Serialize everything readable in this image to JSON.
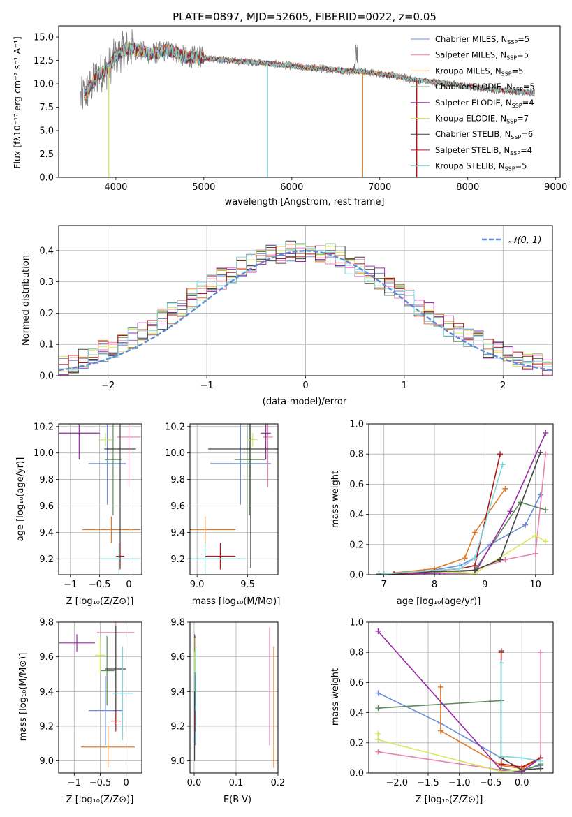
{
  "figure_title": "PLATE=0897, MJD=52605, FIBERID=0022, z=0.05",
  "chart_data": [
    {
      "id": "spectrum",
      "type": "line",
      "title": "PLATE=0897, MJD=52605, FIBERID=0022, z=0.05",
      "xlabel": "wavelength [Angstrom, rest frame]",
      "ylabel": "Flux [fλ10⁻¹⁷ erg cm⁻² s⁻¹ A⁻¹]",
      "xlim": [
        3350,
        9050
      ],
      "ylim": [
        0,
        16.2
      ],
      "xticks": [
        4000,
        5000,
        6000,
        7000,
        8000,
        9000
      ],
      "yticks": [
        0,
        2.5,
        5.0,
        7.5,
        10.0,
        12.5,
        15.0
      ],
      "ytick_labels": [
        "0.0",
        "2.5",
        "5.0",
        "7.5",
        "10.0",
        "12.5",
        "15.0"
      ],
      "grid": false,
      "legend_position": "top-right",
      "data": {
        "wavelength": [
          3600,
          3700,
          3800,
          3900,
          4000,
          4100,
          4200,
          4300,
          4400,
          4500,
          4600,
          4700,
          4800,
          4900,
          5000,
          5200,
          5400,
          5600,
          5800,
          6000,
          6200,
          6400,
          6600,
          6800,
          7000,
          7200,
          7400,
          7600,
          7800,
          8000,
          8200,
          8400,
          8600,
          8750
        ],
        "flux": [
          8.5,
          9.5,
          11.0,
          11.5,
          13.0,
          13.6,
          13.8,
          13.5,
          13.2,
          13.4,
          13.6,
          13.3,
          12.8,
          12.9,
          12.8,
          12.6,
          12.4,
          12.3,
          12.1,
          11.9,
          11.7,
          11.6,
          11.4,
          11.3,
          11.1,
          10.8,
          10.4,
          10.2,
          10.0,
          9.7,
          9.5,
          9.3,
          9.2,
          9.0
        ]
      },
      "series": [
        {
          "name": "Chabrier MILES, N_SSP=5",
          "color": "#6a8fd8"
        },
        {
          "name": "Salpeter MILES, N_SSP=5",
          "color": "#e882b4"
        },
        {
          "name": "Kroupa MILES, N_SSP=5",
          "color": "#e07b28"
        },
        {
          "name": "Chabrier ELODIE, N_SSP=5",
          "color": "#5d8a5d"
        },
        {
          "name": "Salpeter ELODIE, N_SSP=4",
          "color": "#9a2aa8"
        },
        {
          "name": "Kroupa ELODIE, N_SSP=7",
          "color": "#d8e85c"
        },
        {
          "name": "Chabrier STELIB, N_SSP=6",
          "color": "#444444"
        },
        {
          "name": "Salpeter STELIB, N_SSP=4",
          "color": "#b01818"
        },
        {
          "name": "Kroupa STELIB, N_SSP=5",
          "color": "#7fd6dc"
        }
      ]
    },
    {
      "id": "residuals",
      "type": "line",
      "xlabel": "(data-model)/error",
      "ylabel": "Normed distribution",
      "xlim": [
        -2.5,
        2.5
      ],
      "ylim": [
        0,
        0.48
      ],
      "xticks": [
        -2,
        -1,
        0,
        1,
        2
      ],
      "xtick_labels": [
        "−2",
        "−1",
        "0",
        "1",
        "2"
      ],
      "yticks": [
        0.0,
        0.1,
        0.2,
        0.3,
        0.4
      ],
      "ytick_labels": [
        "0.0",
        "0.1",
        "0.2",
        "0.3",
        "0.4"
      ],
      "grid": true,
      "legend_position": "top-right",
      "legend": "𝒩(0, 1)",
      "normal_curve": {
        "mu": 0,
        "sigma": 1,
        "color": "#5b8bd6"
      },
      "histogram_bin_width": 0.1,
      "histogram_counts_approx": [
        0.03,
        0.04,
        0.05,
        0.06,
        0.08,
        0.09,
        0.11,
        0.12,
        0.14,
        0.16,
        0.18,
        0.2,
        0.22,
        0.25,
        0.27,
        0.29,
        0.31,
        0.33,
        0.35,
        0.36,
        0.38,
        0.39,
        0.39,
        0.4,
        0.4,
        0.4,
        0.39,
        0.39,
        0.38,
        0.36,
        0.35,
        0.33,
        0.31,
        0.29,
        0.27,
        0.25,
        0.22,
        0.2,
        0.18,
        0.16,
        0.14,
        0.12,
        0.11,
        0.09,
        0.08,
        0.06,
        0.05,
        0.04,
        0.04,
        0.03
      ]
    },
    {
      "id": "age_vs_Z",
      "type": "scatter",
      "xlabel": "Z [log₁₀(Z/Z⊙)]",
      "ylabel": "age  [log₁₀(age/yr)]",
      "xlim": [
        -1.2,
        0.22
      ],
      "ylim": [
        9.08,
        10.22
      ],
      "xticks": [
        -1,
        -0.5,
        0
      ],
      "xtick_labels": [
        "−1",
        "−0.5",
        "0"
      ],
      "yticks": [
        9.2,
        9.4,
        9.6,
        9.8,
        10.0,
        10.2
      ],
      "ytick_labels": [
        "9.2",
        "9.4",
        "9.6",
        "9.8",
        "10.0",
        "10.2"
      ],
      "grid": true,
      "points": [
        {
          "x": -0.37,
          "y": 9.92,
          "xerr": 0.32,
          "yerr": 0.31,
          "color": "#6a8fd8"
        },
        {
          "x": 0.0,
          "y": 10.12,
          "xerr": 0.2,
          "yerr": 0.38,
          "color": "#e882b4"
        },
        {
          "x": -0.3,
          "y": 9.42,
          "xerr": 0.5,
          "yerr": 0.1,
          "color": "#e07b28"
        },
        {
          "x": -0.27,
          "y": 9.95,
          "xerr": 0.14,
          "yerr": 0.42,
          "color": "#5d8a5d"
        },
        {
          "x": -0.85,
          "y": 10.15,
          "xerr": 0.35,
          "yerr": 0.2,
          "color": "#9a2aa8"
        },
        {
          "x": -0.4,
          "y": 10.1,
          "xerr": 0.12,
          "yerr": 0.05,
          "color": "#d8e85c"
        },
        {
          "x": -0.15,
          "y": 10.03,
          "xerr": 0.27,
          "yerr": 0.9,
          "color": "#444444"
        },
        {
          "x": -0.15,
          "y": 9.22,
          "xerr": 0.07,
          "yerr": 0.1,
          "color": "#b01818"
        },
        {
          "x": -0.17,
          "y": 9.2,
          "xerr": 0.35,
          "yerr": 0.12,
          "color": "#7fd6dc"
        }
      ]
    },
    {
      "id": "age_vs_mass",
      "type": "scatter",
      "xlabel": "mass [log₁₀(M/M⊙)]",
      "ylabel": "",
      "xlim": [
        8.93,
        9.8
      ],
      "ylim": [
        9.08,
        10.22
      ],
      "xticks": [
        9.0,
        9.5
      ],
      "xtick_labels": [
        "9.0",
        "9.5"
      ],
      "yticks": [
        9.2,
        9.4,
        9.6,
        9.8,
        10.0,
        10.2
      ],
      "ytick_labels": [
        "9.2",
        "9.4",
        "9.6",
        "9.8",
        "10.0",
        "10.2"
      ],
      "grid": true,
      "points": [
        {
          "x": 9.43,
          "y": 9.92,
          "xerr": 0.3,
          "yerr": 0.31,
          "color": "#6a8fd8"
        },
        {
          "x": 9.7,
          "y": 10.12,
          "xerr": 0.05,
          "yerr": 0.38,
          "color": "#e882b4"
        },
        {
          "x": 9.08,
          "y": 9.42,
          "xerr": 0.3,
          "yerr": 0.1,
          "color": "#e07b28"
        },
        {
          "x": 9.52,
          "y": 9.95,
          "xerr": 0.15,
          "yerr": 0.42,
          "color": "#5d8a5d"
        },
        {
          "x": 9.68,
          "y": 10.15,
          "xerr": 0.05,
          "yerr": 0.2,
          "color": "#9a2aa8"
        },
        {
          "x": 9.55,
          "y": 10.1,
          "xerr": 0.05,
          "yerr": 0.05,
          "color": "#d8e85c"
        },
        {
          "x": 9.53,
          "y": 10.03,
          "xerr": 0.42,
          "yerr": 0.9,
          "color": "#444444"
        },
        {
          "x": 9.23,
          "y": 9.22,
          "xerr": 0.15,
          "yerr": 0.1,
          "color": "#b01818"
        },
        {
          "x": 9.08,
          "y": 9.2,
          "xerr": 0.4,
          "yerr": 0.12,
          "color": "#7fd6dc"
        }
      ]
    },
    {
      "id": "massweight_vs_age",
      "type": "line",
      "xlabel": "age  [log₁₀(age/yr)]",
      "ylabel": "mass weight",
      "xlim": [
        6.7,
        10.35
      ],
      "ylim": [
        0,
        1.0
      ],
      "xticks": [
        7,
        8,
        9,
        10
      ],
      "xtick_labels": [
        "7",
        "8",
        "9",
        "10"
      ],
      "yticks": [
        0.0,
        0.2,
        0.4,
        0.6,
        0.8,
        1.0
      ],
      "ytick_labels": [
        "0.0",
        "0.2",
        "0.4",
        "0.6",
        "0.8",
        "1.0"
      ],
      "grid": true,
      "series": [
        {
          "color": "#6a8fd8",
          "x": [
            7.0,
            7.8,
            8.5,
            8.8,
            9.1,
            9.8,
            10.1
          ],
          "y": [
            0.005,
            0.02,
            0.06,
            0.11,
            0.2,
            0.33,
            0.53
          ]
        },
        {
          "color": "#e882b4",
          "x": [
            7.2,
            8.2,
            8.8,
            9.4,
            10.0,
            10.2
          ],
          "y": [
            0.005,
            0.01,
            0.03,
            0.1,
            0.14,
            0.8
          ]
        },
        {
          "color": "#e07b28",
          "x": [
            7.0,
            8.0,
            8.6,
            8.8,
            9.4
          ],
          "y": [
            0.005,
            0.04,
            0.11,
            0.28,
            0.57
          ]
        },
        {
          "color": "#5d8a5d",
          "x": [
            6.9,
            8.0,
            8.8,
            9.7,
            10.2
          ],
          "y": [
            0.005,
            0.01,
            0.03,
            0.48,
            0.43
          ]
        },
        {
          "color": "#9a2aa8",
          "x": [
            7.0,
            8.1,
            8.8,
            9.5,
            10.2
          ],
          "y": [
            0.005,
            0.01,
            0.01,
            0.42,
            0.94
          ]
        },
        {
          "color": "#d8e85c",
          "x": [
            7.0,
            8.0,
            8.8,
            10.0,
            10.2
          ],
          "y": [
            0.005,
            0.02,
            0.01,
            0.26,
            0.22
          ]
        },
        {
          "color": "#444444",
          "x": [
            7.0,
            8.0,
            8.8,
            9.3,
            10.1
          ],
          "y": [
            0.005,
            0.02,
            0.03,
            0.1,
            0.81
          ]
        },
        {
          "color": "#b01818",
          "x": [
            7.2,
            8.5,
            8.8,
            9.3
          ],
          "y": [
            0.005,
            0.04,
            0.06,
            0.8
          ]
        },
        {
          "color": "#7fd6dc",
          "x": [
            7.0,
            8.5,
            8.8,
            9.35
          ],
          "y": [
            0.005,
            0.04,
            0.11,
            0.73
          ]
        }
      ]
    },
    {
      "id": "mass_vs_Z",
      "type": "scatter",
      "xlabel": "Z [log₁₀(Z/Z⊙)]",
      "ylabel": "mass [log₁₀(M/M⊙)]",
      "xlim": [
        -1.3,
        0.3
      ],
      "ylim": [
        8.93,
        9.8
      ],
      "xticks": [
        -1,
        -0.5,
        0
      ],
      "xtick_labels": [
        "−1",
        "−0.5",
        "0"
      ],
      "yticks": [
        9.0,
        9.2,
        9.4,
        9.6,
        9.8
      ],
      "ytick_labels": [
        "9.0",
        "9.2",
        "9.4",
        "9.6",
        "9.8"
      ],
      "grid": true,
      "points": [
        {
          "x": -0.4,
          "y": 9.29,
          "xerr": 0.32,
          "yerr": 0.2,
          "color": "#6a8fd8"
        },
        {
          "x": -0.2,
          "y": 9.74,
          "xerr": 0.36,
          "yerr": 0.5,
          "color": "#e882b4"
        },
        {
          "x": -0.35,
          "y": 9.08,
          "xerr": 0.52,
          "yerr": 0.12,
          "color": "#e07b28"
        },
        {
          "x": -0.37,
          "y": 9.52,
          "xerr": 0.14,
          "yerr": 0.2,
          "color": "#5d8a5d"
        },
        {
          "x": -0.95,
          "y": 9.68,
          "xerr": 0.35,
          "yerr": 0.05,
          "color": "#9a2aa8"
        },
        {
          "x": -0.5,
          "y": 9.61,
          "xerr": 0.1,
          "yerr": 0.1,
          "color": "#d8e85c"
        },
        {
          "x": -0.2,
          "y": 9.53,
          "xerr": 0.2,
          "yerr": 0.25,
          "color": "#444444"
        },
        {
          "x": -0.2,
          "y": 9.23,
          "xerr": 0.1,
          "yerr": 0.06,
          "color": "#b01818"
        },
        {
          "x": -0.07,
          "y": 9.39,
          "xerr": 0.2,
          "yerr": 0.27,
          "color": "#7fd6dc"
        }
      ]
    },
    {
      "id": "mass_vs_EBV",
      "type": "scatter",
      "xlabel": "E(B-V)",
      "ylabel": "",
      "xlim": [
        -0.01,
        0.2
      ],
      "ylim": [
        8.93,
        9.8
      ],
      "xticks": [
        0.0,
        0.1,
        0.2
      ],
      "xtick_labels": [
        "0.0",
        "0.1",
        "0.2"
      ],
      "yticks": [
        9.0,
        9.2,
        9.4,
        9.6,
        9.8
      ],
      "ytick_labels": [
        "9.0",
        "9.2",
        "9.4",
        "9.6",
        "9.8"
      ],
      "grid": true,
      "points": [
        {
          "x": 0.003,
          "y": 9.29,
          "xerr": 0.0,
          "yerr": 0.2,
          "color": "#6a8fd8"
        },
        {
          "x": 0.18,
          "y": 9.43,
          "xerr": 0.0,
          "yerr": 0.34,
          "color": "#e882b4"
        },
        {
          "x": 0.19,
          "y": 9.31,
          "xerr": 0.0,
          "yerr": 0.35,
          "color": "#e07b28"
        },
        {
          "x": 0.002,
          "y": 9.52,
          "xerr": 0.0,
          "yerr": 0.2,
          "color": "#5d8a5d"
        },
        {
          "x": 0.001,
          "y": 9.68,
          "xerr": 0.0,
          "yerr": 0.05,
          "color": "#9a2aa8"
        },
        {
          "x": 0.002,
          "y": 9.61,
          "xerr": 0.0,
          "yerr": 0.1,
          "color": "#d8e85c"
        },
        {
          "x": 0.001,
          "y": 9.2,
          "xerr": 0.0,
          "yerr": 0.2,
          "color": "#444444"
        },
        {
          "x": 0.003,
          "y": 9.23,
          "xerr": 0.0,
          "yerr": 0.06,
          "color": "#b01818"
        },
        {
          "x": 0.004,
          "y": 9.39,
          "xerr": 0.0,
          "yerr": 0.27,
          "color": "#7fd6dc"
        }
      ]
    },
    {
      "id": "massweight_vs_Z",
      "type": "line",
      "xlabel": "Z [log₁₀(Z/Z⊙)]",
      "ylabel": "mass weight",
      "xlim": [
        -2.45,
        0.5
      ],
      "ylim": [
        0,
        1.0
      ],
      "xticks": [
        -2.0,
        -1.5,
        -1.0,
        -0.5,
        0.0
      ],
      "xtick_labels": [
        "−2.0",
        "−1.5",
        "−1.0",
        "−0.5",
        "0.0"
      ],
      "yticks": [
        0.0,
        0.2,
        0.4,
        0.6,
        0.8,
        1.0
      ],
      "ytick_labels": [
        "0.0",
        "0.2",
        "0.4",
        "0.6",
        "0.8",
        "1.0"
      ],
      "grid": true,
      "series": [
        {
          "color": "#6a8fd8",
          "x": [
            -2.3,
            -1.3,
            -0.33,
            0.0,
            0.3
          ],
          "y": [
            0.53,
            0.33,
            0.1,
            0.02,
            0.05
          ]
        },
        {
          "color": "#e882b4",
          "x": [
            -2.3,
            -0.33,
            0.0,
            0.3,
            0.3
          ],
          "y": [
            0.14,
            0.02,
            0.01,
            0.1,
            0.8
          ]
        },
        {
          "color": "#e07b28",
          "x": [
            -1.3,
            -1.3,
            -0.33,
            0.0,
            0.3
          ],
          "y": [
            0.57,
            0.28,
            0.05,
            0.03,
            0.1
          ]
        },
        {
          "color": "#5d8a5d",
          "x": [
            -2.3,
            -0.33,
            -0.33,
            0.0,
            0.3
          ],
          "y": [
            0.43,
            0.48,
            0.03,
            0.01,
            0.06
          ]
        },
        {
          "color": "#9a2aa8",
          "x": [
            -2.3,
            -0.33,
            0.0,
            0.3
          ],
          "y": [
            0.94,
            0.02,
            0.01,
            0.1
          ]
        },
        {
          "color": "#d8e85c",
          "x": [
            -2.3,
            -2.3,
            -0.33,
            0.0,
            0.3
          ],
          "y": [
            0.26,
            0.22,
            0.01,
            0.02,
            0.03
          ]
        },
        {
          "color": "#444444",
          "x": [
            -0.33,
            -0.33,
            0.0,
            0.3
          ],
          "y": [
            0.81,
            0.1,
            0.02,
            0.03
          ]
        },
        {
          "color": "#b01818",
          "x": [
            -0.33,
            -0.33,
            0.0,
            0.3
          ],
          "y": [
            0.8,
            0.06,
            0.04,
            0.1
          ]
        },
        {
          "color": "#7fd6dc",
          "x": [
            -0.33,
            -0.33,
            0.0,
            0.3
          ],
          "y": [
            0.73,
            0.11,
            0.1,
            0.08
          ]
        }
      ]
    }
  ]
}
